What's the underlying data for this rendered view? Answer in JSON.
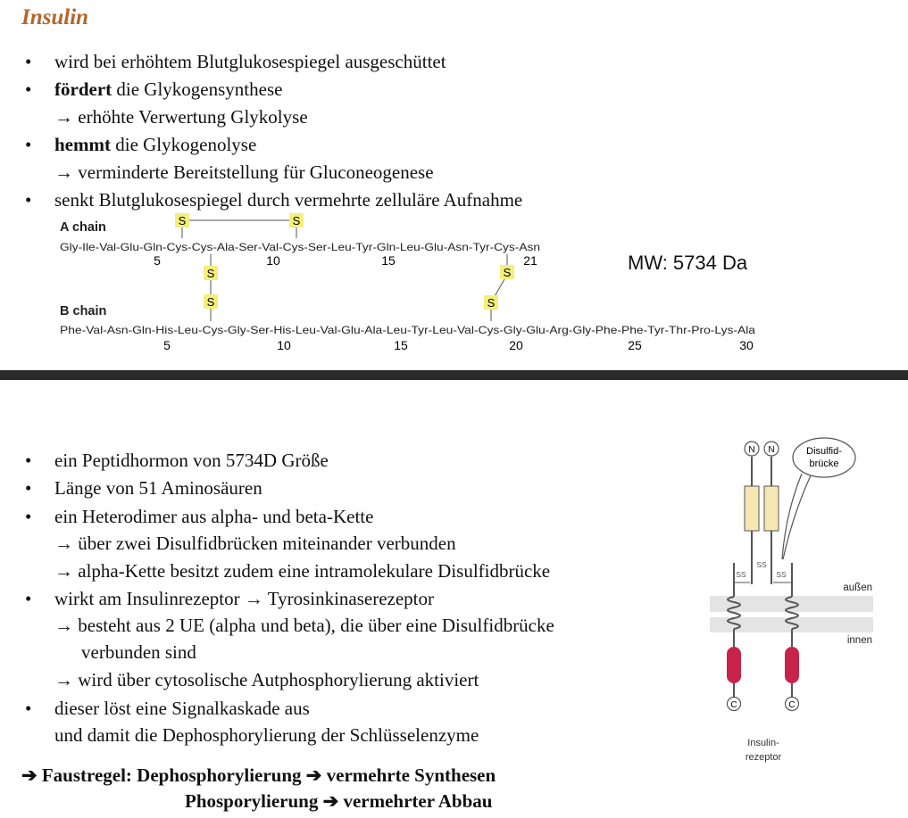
{
  "header": {
    "title": "Insulin"
  },
  "top_list": {
    "b1": "wird bei erhöhtem Blutglukosespiegel ausgeschüttet",
    "b2_bold": "fördert",
    "b2_rest": " die Glykogensynthese",
    "b2_sub": "→ erhöhte Verwertung Glykolyse",
    "b3_bold": "hemmt",
    "b3_rest": " die Glykogenolyse",
    "b3_sub": "→ verminderte Bereitstellung für Gluconeogenese",
    "b4": "senkt Blutglukosespiegel durch vermehrte zelluläre Aufnahme",
    "bullet": "•"
  },
  "structure": {
    "a_chain_label": "A chain",
    "a_chain_seq": "Gly-Ile-Val-Glu-Gln-Cys-Cys-Ala-Ser-Val-Cys-Ser-Leu-Tyr-Gln-Leu-Glu-Asn-Tyr-Cys-Asn",
    "a_numbers": [
      "5",
      "10",
      "15",
      "21"
    ],
    "b_chain_label": "B chain",
    "b_chain_seq": "Phe-Val-Asn-Gln-His-Leu-Cys-Gly-Ser-His-Leu-Val-Glu-Ala-Leu-Tyr-Leu-Val-Cys-Gly-Glu-Arg-Gly-Phe-Phe-Tyr-Thr-Pro-Lys-Ala",
    "b_numbers": [
      "5",
      "10",
      "15",
      "20",
      "25",
      "30"
    ],
    "sulfur": "S",
    "mw": "MW: 5734 Da",
    "colors": {
      "sulfur_fill": "#f4ef7a",
      "bond": "#555555"
    }
  },
  "bottom_list": {
    "i1": "ein Peptidhormon von 5734D Größe",
    "i2": "Länge von 51 Aminosäuren",
    "i3": "ein Heterodimer aus alpha- und beta-Kette",
    "i3_sub1": "→ über zwei Disulfidbrücken miteinander verbunden",
    "i3_sub2": "→ alpha-Kette besitzt zudem eine intramolekulare Disulfidbrücke",
    "i4": "wirkt am Insulinrezeptor → Tyrosinkinaserezeptor",
    "i4_sub1": "→ besteht aus 2 UE (alpha und beta), die über eine Disulfidbrücke",
    "i4_sub1b": "verbunden sind",
    "i4_sub2": "→ wird über cytosolische Autphosphorylierung aktiviert",
    "i5": "dieser löst eine Signalkaskade aus",
    "i5_sub": "und damit die Dephosphorylierung der Schlüsselenzyme"
  },
  "rule": {
    "line1": "➔ Faustregel: Dephosphorylierung ➔ vermehrte Synthesen",
    "line2": "Phosporylierung ➔ vermehrter Abbau"
  },
  "receptor": {
    "n_label": "N",
    "c_label": "C",
    "callout": "Disulfid-\nbrücke",
    "callout_l1": "Disulfid-",
    "callout_l2": "brücke",
    "outside": "außen",
    "inside": "innen",
    "ss": "SS",
    "caption_l1": "Insulin-",
    "caption_l2": "rezeptor",
    "colors": {
      "extracellular": "#f6e7b4",
      "kinase": "#c8234a",
      "membrane": "#e4e4e4"
    }
  }
}
